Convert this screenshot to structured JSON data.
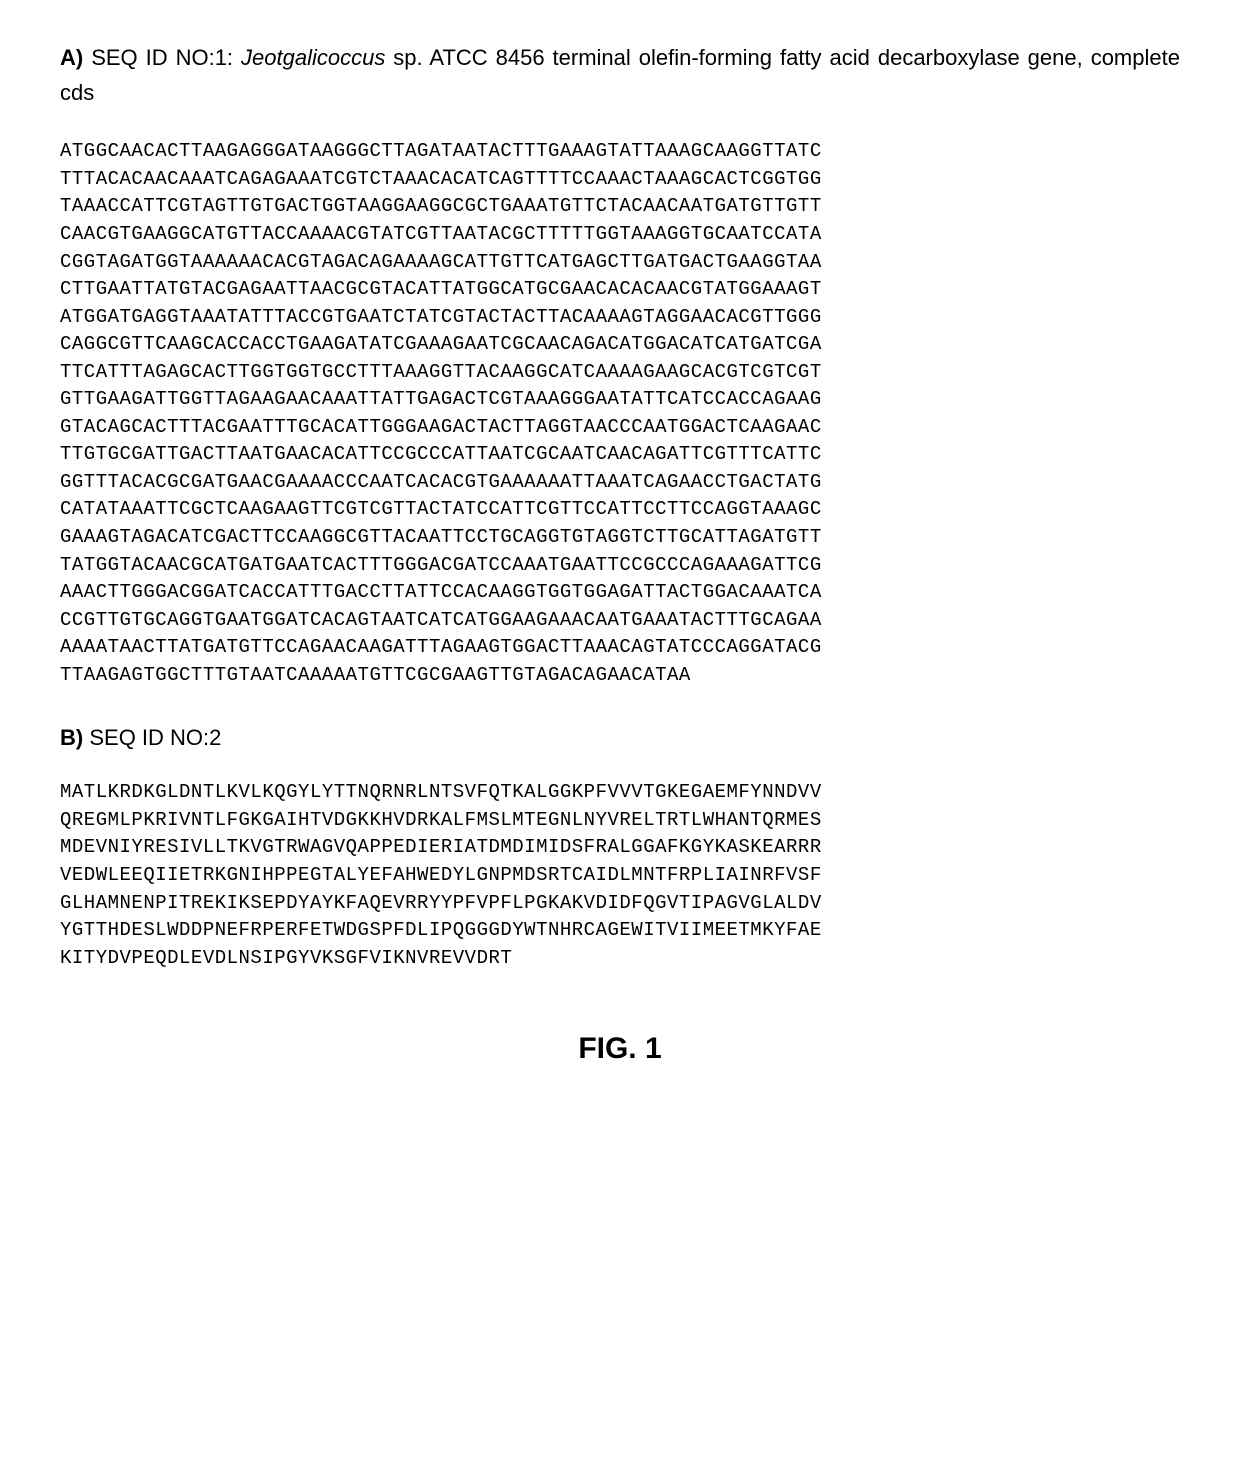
{
  "section_a": {
    "label": "A)",
    "seq_id": "SEQ ID NO:1:",
    "organism": "Jeotgalicoccus",
    "sp_text": "sp. ATCC 8456 terminal olefin-forming fatty acid decarboxylase gene, complete cds",
    "sequence_lines": [
      "ATGGCAACACTTAAGAGGGATAAGGGCTTAGATAATACTTTGAAAGTATTAAAGCAAGGTTATC",
      "TTTACACAACAAATCAGAGAAATCGTCTAAACACATCAGTTTTCCAAACTAAAGCACTCGGTGG",
      "TAAACCATTCGTAGTTGTGACTGGTAAGGAAGGCGCTGAAATGTTCTACAACAATGATGTTGTT",
      "CAACGTGAAGGCATGTTACCAAAACGTATCGTTAATACGCTTTTTGGTAAAGGTGCAATCCATA",
      "CGGTAGATGGTAAAAAACACGTAGACAGAAAAGCATTGTTCATGAGCTTGATGACTGAAGGTAA",
      "CTTGAATTATGTACGAGAATTAACGCGTACATTATGGCATGCGAACACACAACGTATGGAAAGT",
      "ATGGATGAGGTAAATATTTACCGTGAATCTATCGTACTACTTACAAAAGTAGGAACACGTTGGG",
      "CAGGCGTTCAAGCACCACCTGAAGATATCGAAAGAATCGCAACAGACATGGACATCATGATCGA",
      "TTCATTTAGAGCACTTGGTGGTGCCTTTAAAGGTTACAAGGCATCAAAAGAAGCACGTCGTCGT",
      "GTTGAAGATTGGTTAGAAGAACAAATTATTGAGACTCGTAAAGGGAATATTCATCCACCAGAAG",
      "GTACAGCACTTTACGAATTTGCACATTGGGAAGACTACTTAGGTAACCCAATGGACTCAAGAAC",
      "TTGTGCGATTGACTTAATGAACACATTCCGCCCATTAATCGCAATCAACAGATTCGTTTCATTC",
      "GGTTTACACGCGATGAACGAAAACCCAATCACACGTGAAAAAATTAAATCAGAACCTGACTATG",
      "CATATAAATTCGCTCAAGAAGTTCGTCGTTACTATCCATTCGTTCCATTCCTTCCAGGTAAAGC",
      "GAAAGTAGACATCGACTTCCAAGGCGTTACAATTCCTGCAGGTGTAGGTCTTGCATTAGATGTT",
      "TATGGTACAACGCATGATGAATCACTTTGGGACGATCCAAATGAATTCCGCCCAGAAAGATTCG",
      "AAACTTGGGACGGATCACCATTTGACCTTATTCCACAAGGTGGTGGAGATTACTGGACAAATCA",
      "CCGTTGTGCAGGTGAATGGATCACAGTAATCATCATGGAAGAAACAATGAAATACTTTGCAGAA",
      "AAAATAACTTATGATGTTCCAGAACAAGATTTAGAAGTGGACTTAAACAGTATCCCAGGATACG",
      "TTAAGAGTGGCTTTGTAATCAAAAATGTTCGCGAAGTTGTAGACAGAACATAA"
    ]
  },
  "section_b": {
    "label": "B)",
    "seq_id": "SEQ ID NO:2",
    "sequence_lines": [
      "MATLKRDKGLDNTLKVLKQGYLYTTNQRNRLNTSVFQTKALGGKPFVVVTGKEGAEMFYNNDVV",
      "QREGMLPKRIVNTLFGKGAIHTVDGKKHVDRKALFMSLMTEGNLNYVRELTRTLWHANTQRMES",
      "MDEVNIYRESIVLLTKVGTRWAGVQAPPEDIERIATDMDIMIDSFRALGGAFKGYKASKEARRR",
      "VEDWLEEQIIETRKGNIHPPEGTALYEFAHWEDYLGNPMDSRTCAIDLMNTFRPLIAINRFVSF",
      "GLHAMNENPITREKIKSEPDYAYKFAQEVRRYYPFVPFLPGKAKVDIDFQGVTIPAGVGLALDV",
      "YGTTHDESLWDDPNEFRPERFETWDGSPFDLIPQGGGDYWTNHRCAGEWITVIIMEETMKYFAE",
      "KITYDVPEQDLEVDLNSIPGYVKSGFVIKNVREVVDRT"
    ]
  },
  "figure_label": "FIG. 1",
  "styling": {
    "background_color": "#ffffff",
    "text_color": "#000000",
    "heading_fontsize": 22,
    "sequence_fontsize": 19,
    "figure_fontsize": 30,
    "font_family_body": "Arial",
    "font_family_sequence": "Courier New"
  }
}
